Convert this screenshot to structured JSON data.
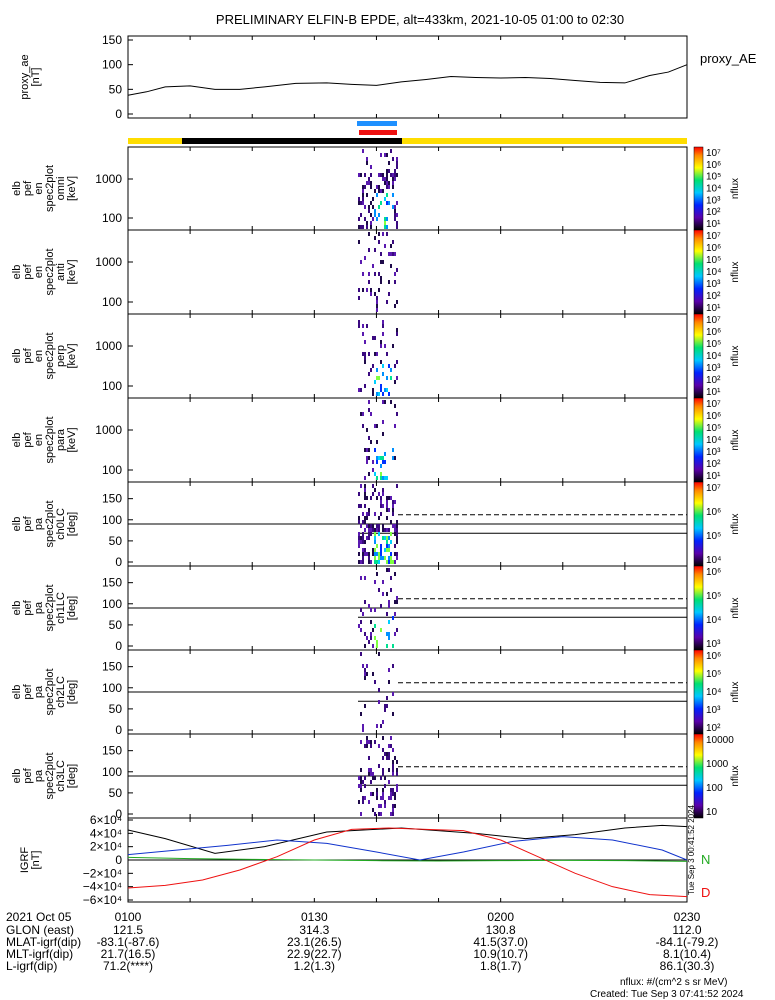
{
  "title": "PRELIMINARY ELFIN-B EPDE, alt=433km, 2021-10-05 01:00 to 02:30",
  "created": "Created: Tue Sep  3 07:41:52 2024",
  "units_note": "nflux: #/(cm^2 s sr MeV)",
  "side_stamp": "Tue Sep  3 00:41:52 2024",
  "colors": {
    "yellow_bar": "#ffdd00",
    "black_bar": "#000000",
    "blue_bar": "#1e90ff",
    "red_bar": "#ee1111",
    "N": "#22aa22",
    "D": "#ee1111",
    "H": "#000000",
    "E": "#1133cc"
  },
  "chart_data": [
    {
      "type": "line",
      "name": "proxy_ae",
      "ylabel": [
        "proxy_ae",
        "[nT]"
      ],
      "legend": "proxy_AE",
      "ylim": [
        0,
        150
      ],
      "yticks": [
        "150",
        "100",
        "50",
        "0"
      ],
      "x_minutes": [
        0,
        3,
        6,
        10,
        14,
        18,
        22,
        27,
        32,
        36,
        40,
        44,
        48,
        52,
        56,
        60,
        64,
        68,
        72,
        76,
        80,
        84,
        87,
        90
      ],
      "values": [
        38,
        45,
        55,
        57,
        50,
        50,
        55,
        62,
        63,
        60,
        58,
        65,
        70,
        76,
        74,
        73,
        74,
        72,
        68,
        64,
        63,
        78,
        85,
        100
      ]
    },
    {
      "type": "heatmap",
      "name": "omni",
      "ylabel": [
        "elb",
        "pef",
        "en",
        "spec2plot",
        "omni",
        "[keV]"
      ],
      "yaxis": "log",
      "yticks": [
        "1000",
        "100"
      ],
      "colorbar": {
        "label": "nflux",
        "ticks": [
          "10⁷",
          "10⁶",
          "10⁵",
          "10⁴",
          "10³",
          "10²",
          "10¹"
        ]
      }
    },
    {
      "type": "heatmap",
      "name": "anti",
      "ylabel": [
        "elb",
        "pef",
        "en",
        "spec2plot",
        "anti",
        "[keV]"
      ],
      "yaxis": "log",
      "yticks": [
        "1000",
        "100"
      ],
      "colorbar": {
        "label": "nflux",
        "ticks": [
          "10⁷",
          "10⁶",
          "10⁵",
          "10⁴",
          "10³",
          "10²",
          "10¹"
        ]
      }
    },
    {
      "type": "heatmap",
      "name": "perp",
      "ylabel": [
        "elb",
        "pef",
        "en",
        "spec2plot",
        "perp",
        "[keV]"
      ],
      "yaxis": "log",
      "yticks": [
        "1000",
        "100"
      ],
      "colorbar": {
        "label": "nflux",
        "ticks": [
          "10⁷",
          "10⁶",
          "10⁵",
          "10⁴",
          "10³",
          "10²",
          "10¹"
        ]
      }
    },
    {
      "type": "heatmap",
      "name": "para",
      "ylabel": [
        "elb",
        "pef",
        "en",
        "spec2plot",
        "para",
        "[keV]"
      ],
      "yaxis": "log",
      "yticks": [
        "1000",
        "100"
      ],
      "colorbar": {
        "label": "nflux",
        "ticks": [
          "10⁷",
          "10⁶",
          "10⁵",
          "10⁴",
          "10³",
          "10²",
          "10¹"
        ]
      }
    },
    {
      "type": "heatmap",
      "name": "ch0LC",
      "ylabel": [
        "elb",
        "pef",
        "pa",
        "spec2plot",
        "ch0LC",
        "[deg]"
      ],
      "ylim": [
        0,
        180
      ],
      "yticks": [
        "150",
        "100",
        "50",
        "0"
      ],
      "colorbar": {
        "label": "nflux",
        "ticks": [
          "10⁷",
          "10⁶",
          "10⁵",
          "10⁴"
        ]
      }
    },
    {
      "type": "heatmap",
      "name": "ch1LC",
      "ylabel": [
        "elb",
        "pef",
        "pa",
        "spec2plot",
        "ch1LC",
        "[deg]"
      ],
      "ylim": [
        0,
        180
      ],
      "yticks": [
        "150",
        "100",
        "50",
        "0"
      ],
      "colorbar": {
        "label": "nflux",
        "ticks": [
          "10⁶",
          "10⁵",
          "10⁴",
          "10³"
        ]
      }
    },
    {
      "type": "heatmap",
      "name": "ch2LC",
      "ylabel": [
        "elb",
        "pef",
        "pa",
        "spec2plot",
        "ch2LC",
        "[deg]"
      ],
      "ylim": [
        0,
        180
      ],
      "yticks": [
        "150",
        "100",
        "50",
        "0"
      ],
      "colorbar": {
        "label": "nflux",
        "ticks": [
          "10⁶",
          "10⁵",
          "10⁴",
          "10³",
          "10²"
        ]
      }
    },
    {
      "type": "heatmap",
      "name": "ch3LC",
      "ylabel": [
        "elb",
        "pef",
        "pa",
        "spec2plot",
        "ch3LC",
        "[deg]"
      ],
      "ylim": [
        0,
        180
      ],
      "yticks": [
        "150",
        "100",
        "50",
        "0"
      ],
      "colorbar": {
        "label": "nflux",
        "ticks": [
          "10000",
          "1000",
          "100",
          "10"
        ]
      }
    },
    {
      "type": "line",
      "name": "IGRF",
      "ylabel": [
        "IGRF",
        "[nT]"
      ],
      "ylim": [
        -60000,
        60000
      ],
      "yticks": [
        "6×10⁴",
        "4×10⁴",
        "2×10⁴",
        "0",
        "−2×10⁴",
        "−4×10⁴",
        "−6×10⁴"
      ],
      "legend": [
        "N",
        "D"
      ],
      "series": [
        {
          "name": "H",
          "x_minutes": [
            0,
            6,
            14,
            22,
            32,
            44,
            56,
            64,
            72,
            80,
            86,
            90
          ],
          "values": [
            45000,
            32000,
            10000,
            20000,
            42000,
            48000,
            40000,
            32000,
            38000,
            48000,
            52000,
            50000
          ]
        },
        {
          "name": "E",
          "x_minutes": [
            0,
            8,
            16,
            24,
            32,
            40,
            47,
            54,
            62,
            70,
            78,
            86,
            90
          ],
          "values": [
            8000,
            15000,
            22000,
            30000,
            25000,
            12000,
            0,
            12000,
            28000,
            35000,
            30000,
            15000,
            0
          ]
        },
        {
          "name": "N",
          "x_minutes": [
            0,
            10,
            20,
            30,
            40,
            50,
            60,
            70,
            80,
            90
          ],
          "values": [
            4000,
            2000,
            1000,
            0,
            -1000,
            -1500,
            -1000,
            -500,
            -1000,
            -2000
          ]
        },
        {
          "name": "D",
          "x_minutes": [
            0,
            6,
            12,
            18,
            24,
            30,
            36,
            42,
            48,
            54,
            60,
            66,
            72,
            78,
            84,
            90
          ],
          "values": [
            -42000,
            -38000,
            -30000,
            -15000,
            5000,
            30000,
            46000,
            48000,
            46000,
            44000,
            30000,
            5000,
            -20000,
            -40000,
            -52000,
            -55000
          ]
        }
      ]
    }
  ],
  "footer": {
    "header_cells": [
      "2021 Oct 05",
      "0100",
      "0130",
      "0200",
      "0230"
    ],
    "rows": [
      {
        "label": "GLON (east)",
        "values": [
          "121.5",
          "314.3",
          "130.8",
          "112.0"
        ]
      },
      {
        "label": "MLAT-igrf(dip)",
        "values": [
          "-83.1(-87.6)",
          "23.1(26.5)",
          "41.5(37.0)",
          "-84.1(-79.2)"
        ]
      },
      {
        "label": "MLT-igrf(dip)",
        "values": [
          "21.7(16.5)",
          "22.9(22.7)",
          "10.9(10.7)",
          "8.1(10.4)"
        ]
      },
      {
        "label": "L-igrf(dip)",
        "values": [
          "71.2(****)",
          "1.2(1.3)",
          "1.8(1.7)",
          "86.1(30.3)"
        ]
      }
    ]
  }
}
